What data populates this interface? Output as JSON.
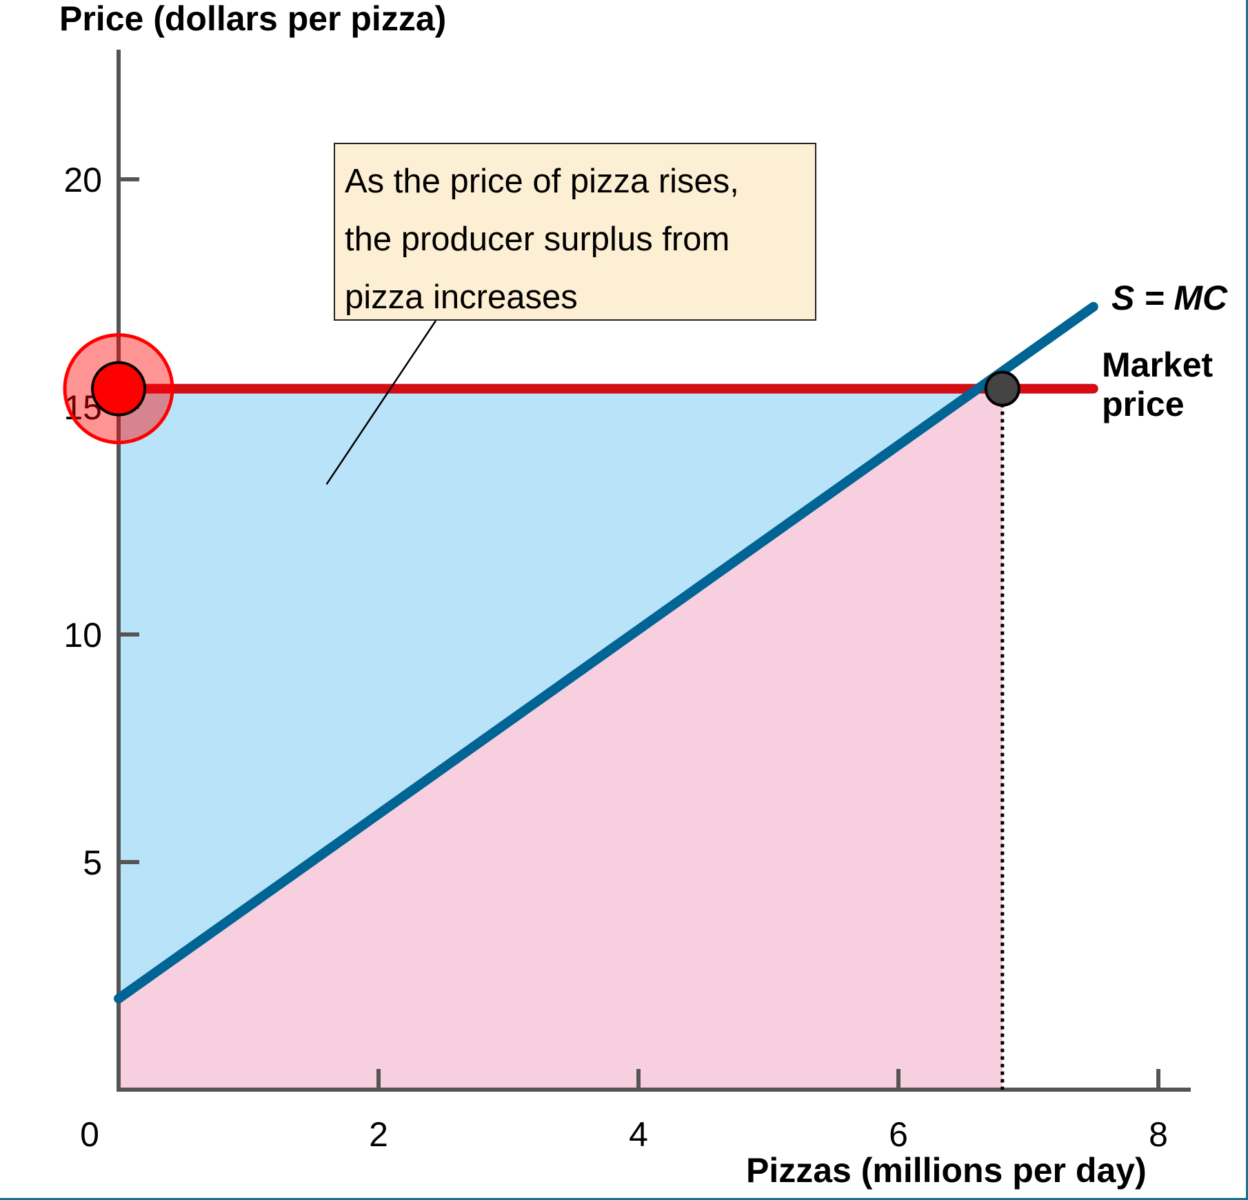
{
  "chart_data": {
    "type": "line",
    "y_axis_title": "Price (dollars per pizza)",
    "x_axis_title": "Pizzas (millions per day)",
    "x_ticks": [
      "0",
      "2",
      "4",
      "6",
      "8"
    ],
    "y_ticks": [
      "5",
      "10",
      "15",
      "20"
    ],
    "xlim": [
      0,
      8.3
    ],
    "ylim": [
      0,
      20
    ],
    "series": [
      {
        "name": "S = MC",
        "color": "#006494",
        "points": [
          [
            0,
            2
          ],
          [
            7.5,
            17.2
          ]
        ]
      },
      {
        "name": "Market price",
        "color": "#d40c13",
        "points": [
          [
            0,
            15.4
          ],
          [
            7.5,
            15.4
          ]
        ]
      }
    ],
    "equilibrium_point": {
      "x": 6.8,
      "y": 15.4,
      "color": "#444444"
    },
    "highlight_point": {
      "x": 0,
      "y": 15.4,
      "color": "#ff0000"
    },
    "regions": {
      "producer_surplus": {
        "color": "#b9e3f8"
      },
      "cost_of_production": {
        "color": "#f8cfdf"
      }
    },
    "annotation": {
      "lines": [
        "As the price of pizza rises,",
        "the producer surplus from",
        "pizza increases"
      ],
      "pointer_to": {
        "x": 1.6,
        "y": 13.3
      }
    },
    "labels": {
      "supply": "S = MC",
      "market_price_line1": "Market",
      "market_price_line2": "price"
    },
    "grid": false
  }
}
